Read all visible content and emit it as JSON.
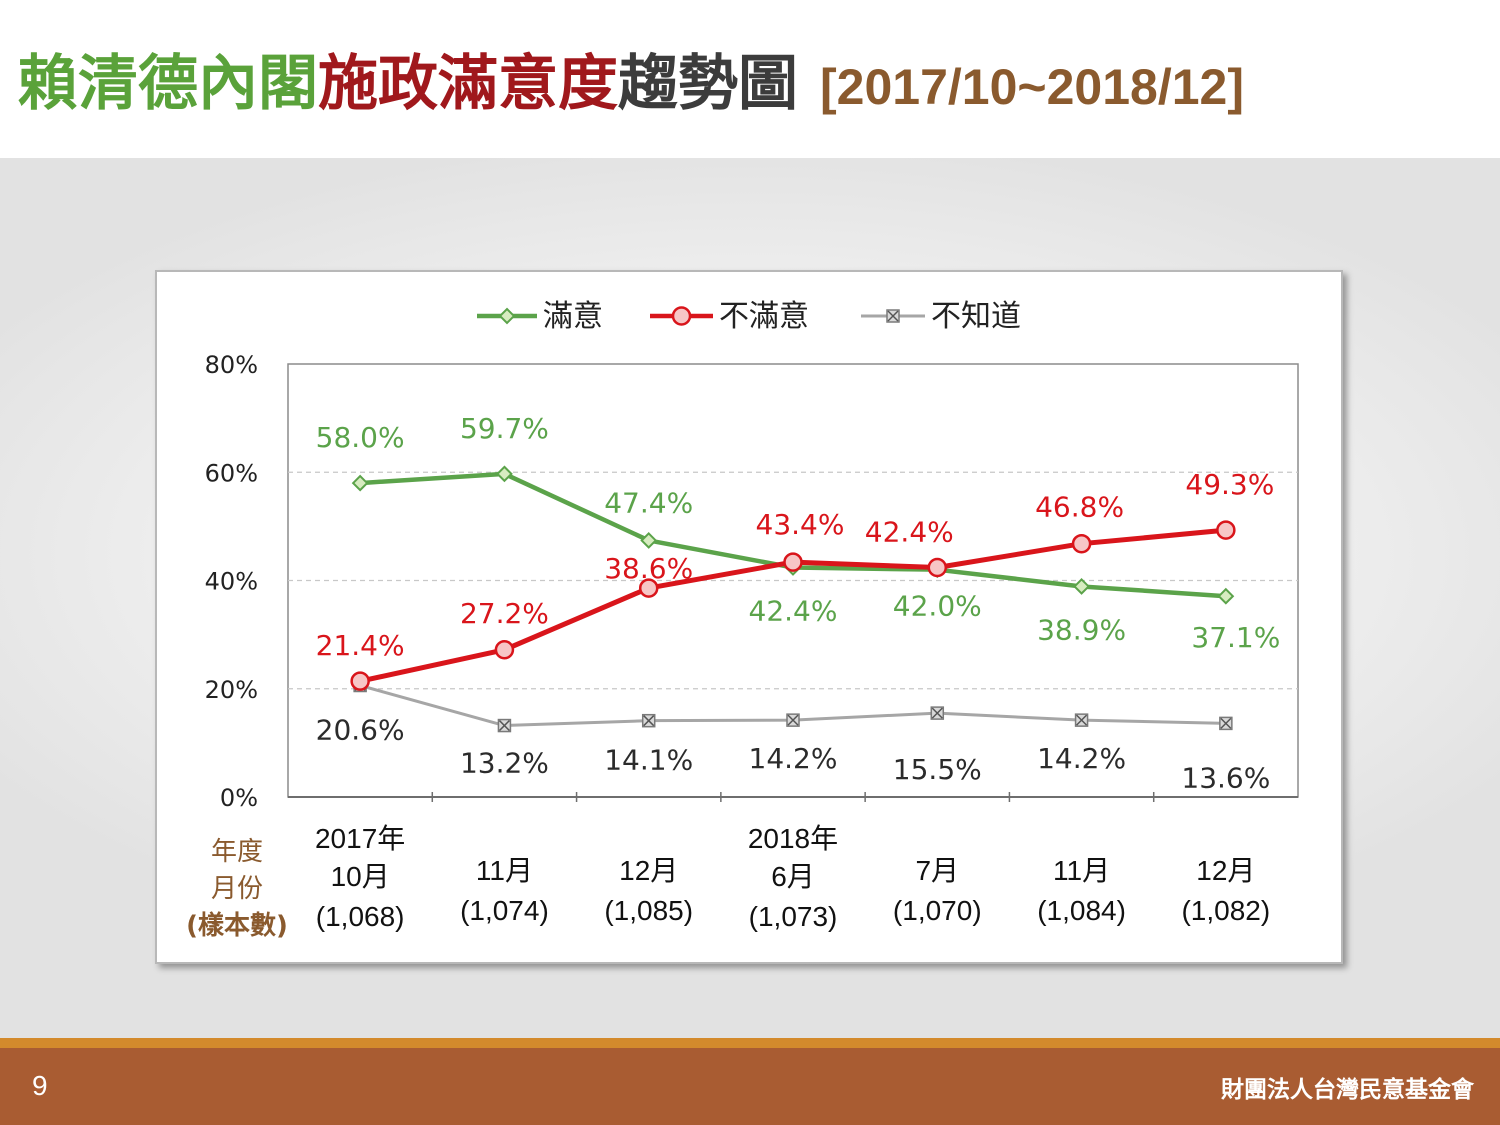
{
  "title": {
    "part1": "賴清德內閣",
    "part2": "施政滿意度",
    "part3": "趨勢圖",
    "range": "[2017/10~2018/12]"
  },
  "footer": {
    "page": "9",
    "org": "財團法人台灣民意基金會"
  },
  "colors": {
    "satisfied": "#5ba34a",
    "dissatisfied": "#d9151b",
    "unknown": "#a6a6a6",
    "title_green": "#5aa23a",
    "title_red": "#a0181c",
    "title_gray": "#3c3c3c",
    "footer_bg": "#a95c32"
  },
  "chart_data": {
    "type": "line",
    "ylim": [
      0,
      80
    ],
    "yticks": [
      "0%",
      "20%",
      "40%",
      "60%",
      "80%"
    ],
    "grid": "horizontal dashed",
    "legend_position": "top-center",
    "row_labels": [
      "年度",
      "月份",
      "(樣本數)"
    ],
    "categories": [
      {
        "year": "2017年",
        "month": "10月",
        "sample": "(1,068)"
      },
      {
        "year": "",
        "month": "11月",
        "sample": "(1,074)"
      },
      {
        "year": "",
        "month": "12月",
        "sample": "(1,085)"
      },
      {
        "year": "2018年",
        "month": "6月",
        "sample": "(1,073)"
      },
      {
        "year": "",
        "month": "7月",
        "sample": "(1,070)"
      },
      {
        "year": "",
        "month": "11月",
        "sample": "(1,084)"
      },
      {
        "year": "",
        "month": "12月",
        "sample": "(1,082)"
      }
    ],
    "series": [
      {
        "name": "滿意",
        "color": "#5ba34a",
        "marker": "diamond",
        "values": [
          58.0,
          59.7,
          47.4,
          42.4,
          42.0,
          38.9,
          37.1
        ],
        "labels": [
          "58.0%",
          "59.7%",
          "47.4%",
          "42.4%",
          "42.0%",
          "38.9%",
          "37.1%"
        ]
      },
      {
        "name": "不滿意",
        "color": "#d9151b",
        "marker": "circle",
        "values": [
          21.4,
          27.2,
          38.6,
          43.4,
          42.4,
          46.8,
          49.3
        ],
        "labels": [
          "21.4%",
          "27.2%",
          "38.6%",
          "43.4%",
          "42.4%",
          "46.8%",
          "49.3%"
        ]
      },
      {
        "name": "不知道",
        "color": "#a6a6a6",
        "marker": "x-square",
        "values": [
          20.6,
          13.2,
          14.1,
          14.2,
          15.5,
          14.2,
          13.6
        ],
        "labels": [
          "20.6%",
          "13.2%",
          "14.1%",
          "14.2%",
          "15.5%",
          "14.2%",
          "13.6%"
        ]
      }
    ]
  }
}
